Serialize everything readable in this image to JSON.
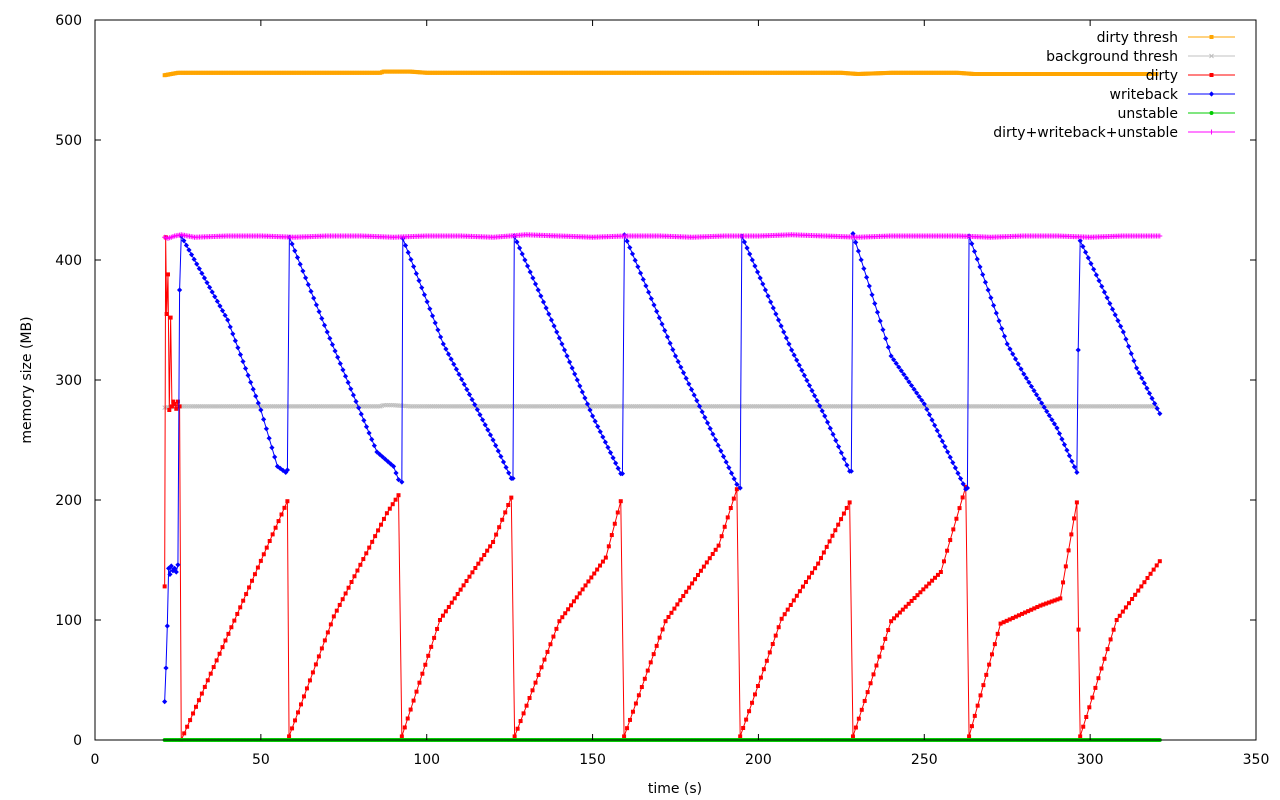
{
  "chart_data": {
    "type": "line",
    "title": "",
    "xlabel": "time (s)",
    "ylabel": "memory size (MB)",
    "xlim": [
      0,
      350
    ],
    "ylim": [
      0,
      600
    ],
    "xticks": [
      0,
      50,
      100,
      150,
      200,
      250,
      300,
      350
    ],
    "yticks": [
      0,
      100,
      200,
      300,
      400,
      500,
      600
    ],
    "grid": false,
    "legend_position": "top-right",
    "series": [
      {
        "name": "dirty thresh",
        "color": "#ffa500",
        "marker": "square",
        "x": [
          21,
          25,
          30,
          40,
          50,
          60,
          70,
          80,
          86,
          87,
          90,
          95,
          100,
          110,
          120,
          130,
          140,
          150,
          160,
          170,
          180,
          190,
          200,
          210,
          220,
          225,
          230,
          240,
          250,
          260,
          265,
          270,
          280,
          290,
          300,
          310,
          320
        ],
        "y": [
          554,
          556,
          556,
          556,
          556,
          556,
          556,
          556,
          556,
          557,
          557,
          557,
          556,
          556,
          556,
          556,
          556,
          556,
          556,
          556,
          556,
          556,
          556,
          556,
          556,
          556,
          555,
          556,
          556,
          556,
          555,
          555,
          555,
          555,
          555,
          555,
          555
        ]
      },
      {
        "name": "background thresh",
        "color": "#c0c0c0",
        "marker": "cross",
        "x": [
          21,
          25,
          30,
          40,
          50,
          60,
          70,
          80,
          86,
          87,
          90,
          95,
          100,
          110,
          120,
          130,
          140,
          150,
          160,
          170,
          180,
          190,
          200,
          210,
          220,
          230,
          240,
          250,
          260,
          270,
          280,
          290,
          300,
          310,
          320
        ],
        "y": [
          277,
          278,
          278,
          278,
          278,
          278,
          278,
          278,
          278,
          279,
          279,
          278,
          278,
          278,
          278,
          278,
          278,
          278,
          278,
          278,
          278,
          278,
          278,
          278,
          278,
          278,
          278,
          278,
          278,
          278,
          278,
          278,
          278,
          278,
          278
        ]
      },
      {
        "name": "dirty",
        "color": "#ff0000",
        "marker": "square",
        "x": [
          21,
          21.3,
          21.6,
          22,
          22.4,
          22.8,
          23.2,
          23.6,
          24,
          24.5,
          25,
          25.5,
          26,
          58,
          58.5,
          72,
          88,
          91.5,
          92.5,
          104,
          120,
          125.5,
          126.5,
          140,
          154,
          158.5,
          159.5,
          172,
          188,
          193.5,
          194.5,
          207,
          218,
          227.5,
          228.5,
          240,
          255,
          262.5,
          263.5,
          273,
          285,
          291,
          296,
          296.5,
          297,
          308,
          321
        ],
        "y": [
          128,
          419,
          355,
          388,
          275,
          352,
          278,
          282,
          280,
          276,
          282,
          278,
          0,
          199,
          3,
          103,
          189,
          204,
          3,
          100,
          165,
          202,
          3,
          99,
          152,
          199,
          3,
          99,
          162,
          209,
          3,
          101,
          147,
          198,
          3,
          99,
          140,
          211,
          3,
          97,
          112,
          118,
          198,
          92,
          3,
          100,
          149
        ]
      },
      {
        "name": "writeback",
        "color": "#0000ff",
        "marker": "diamond",
        "x": [
          21,
          21.4,
          21.8,
          22.2,
          22.6,
          23,
          23.5,
          24,
          24.5,
          25,
          25.5,
          26,
          40,
          50,
          55,
          57.5,
          58,
          58.6,
          70,
          85,
          90,
          91.5,
          92.5,
          92.8,
          105,
          120,
          125.5,
          126,
          126.4,
          140,
          150,
          158.5,
          159,
          159.6,
          175,
          193.5,
          194.5,
          195,
          210,
          220,
          227.5,
          228,
          228.5,
          240,
          250,
          262.5,
          263,
          263.5,
          275,
          280,
          290,
          296,
          296.4,
          297,
          310,
          314,
          321
        ],
        "y": [
          32,
          60,
          95,
          143,
          138,
          145,
          141,
          143,
          140,
          146,
          375,
          420,
          350,
          275,
          228,
          223,
          225,
          419,
          340,
          240,
          228,
          217,
          215,
          418,
          330,
          250,
          218,
          218,
          420,
          335,
          270,
          222,
          222,
          421,
          320,
          213,
          210,
          420,
          325,
          270,
          224,
          224,
          422,
          320,
          280,
          209,
          210,
          420,
          330,
          305,
          260,
          223,
          325,
          416,
          340,
          310,
          272
        ]
      },
      {
        "name": "unstable",
        "color": "#00cc00",
        "marker": "circle",
        "x": [
          21,
          50,
          100,
          150,
          200,
          250,
          300,
          321
        ],
        "y": [
          0,
          0,
          0,
          0,
          0,
          0,
          0,
          0
        ]
      },
      {
        "name": "dirty+writeback+unstable",
        "color": "#ff00ff",
        "marker": "plus",
        "x": [
          21,
          22,
          24,
          26,
          30,
          40,
          50,
          60,
          70,
          80,
          90,
          100,
          110,
          120,
          130,
          140,
          150,
          160,
          170,
          180,
          190,
          200,
          210,
          220,
          230,
          240,
          250,
          260,
          270,
          280,
          290,
          300,
          310,
          321
        ],
        "y": [
          419,
          418,
          420,
          421,
          419,
          420,
          420,
          419,
          420,
          420,
          419,
          420,
          420,
          419,
          421,
          420,
          419,
          420,
          420,
          419,
          420,
          420,
          421,
          420,
          419,
          420,
          420,
          420,
          419,
          420,
          420,
          419,
          420,
          420
        ]
      }
    ]
  }
}
